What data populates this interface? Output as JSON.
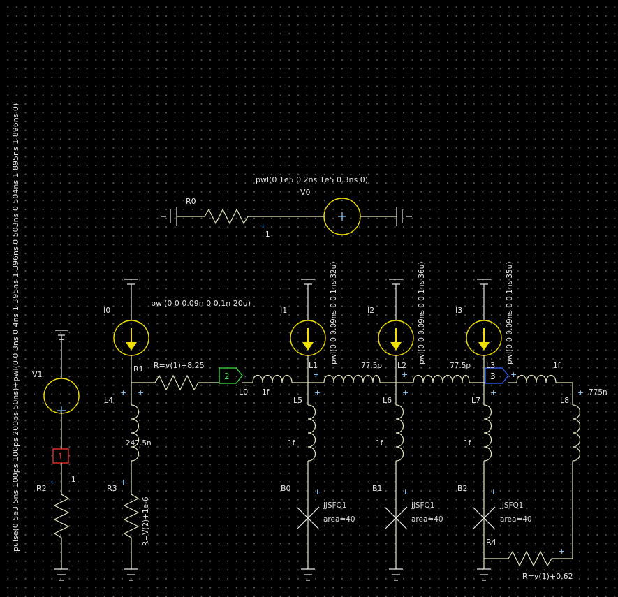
{
  "colors": {
    "background": "#000000",
    "wire": "#e8e8c0",
    "source": "#f0e000",
    "port1": "#ff3030",
    "port2": "#40e040",
    "port3": "#3060ff"
  },
  "vertical_source_text": "pulse(0 5e3 5ns 100ps 100ps 200ps 50ns)+pwl(0 0 3ns 0 4ns 1 395ns 1 396ns 0 503ns 0 504ns 1 895ns 1 896ns 0)",
  "v0": {
    "label": "V0",
    "expr": "pwl(0 1e5 0.2ns 1e5 0.3ns 0)"
  },
  "r0": {
    "label": "R0",
    "node": "1"
  },
  "v1": {
    "label": "V1"
  },
  "ports": {
    "p1": "1",
    "p2": "2",
    "p3": "3"
  },
  "r2": {
    "label": "R2",
    "node": "1"
  },
  "r3": {
    "label": "R3",
    "value": "R=V(2)+1e-6"
  },
  "i0": {
    "label": "I0",
    "expr": "pwl(0 0 0.09n 0 0.1n 20u)"
  },
  "i1": {
    "label": "I1",
    "expr": "pwl(0 0 0.09ns 0 0.1ns 32u)"
  },
  "i2": {
    "label": "I2",
    "expr": "pwl(0 0 0.09ns 0 0.1ns 36u)"
  },
  "i3": {
    "label": "I3",
    "expr": "pwl(0 0 0.09ns 0 0.1ns 35u)"
  },
  "r1": {
    "label": "R1",
    "value": "R=v(1)+8.25"
  },
  "l4": {
    "label": "L4",
    "value": "247.5n"
  },
  "l0": {
    "label": "L0",
    "value": "1f"
  },
  "l1": {
    "label": "L1",
    "value": "77.5p"
  },
  "l2": {
    "label": "L2",
    "value": "77.5p"
  },
  "l3": {
    "label": "L3",
    "value": "1f"
  },
  "l5": {
    "label": "L5",
    "value": "1f"
  },
  "l6": {
    "label": "L6",
    "value": "1f"
  },
  "l7": {
    "label": "L7",
    "value": "1f"
  },
  "l8": {
    "label": "L8",
    "value": "775n"
  },
  "b0": {
    "label": "B0",
    "model": "jjSFQ1",
    "area": "area=40"
  },
  "b1": {
    "label": "B1",
    "model": "jjSFQ1",
    "area": "area=40"
  },
  "b2": {
    "label": "B2",
    "model": "jjSFQ1",
    "area": "area=40"
  },
  "r4": {
    "label": "R4",
    "value": "R=v(1)+0.62"
  }
}
